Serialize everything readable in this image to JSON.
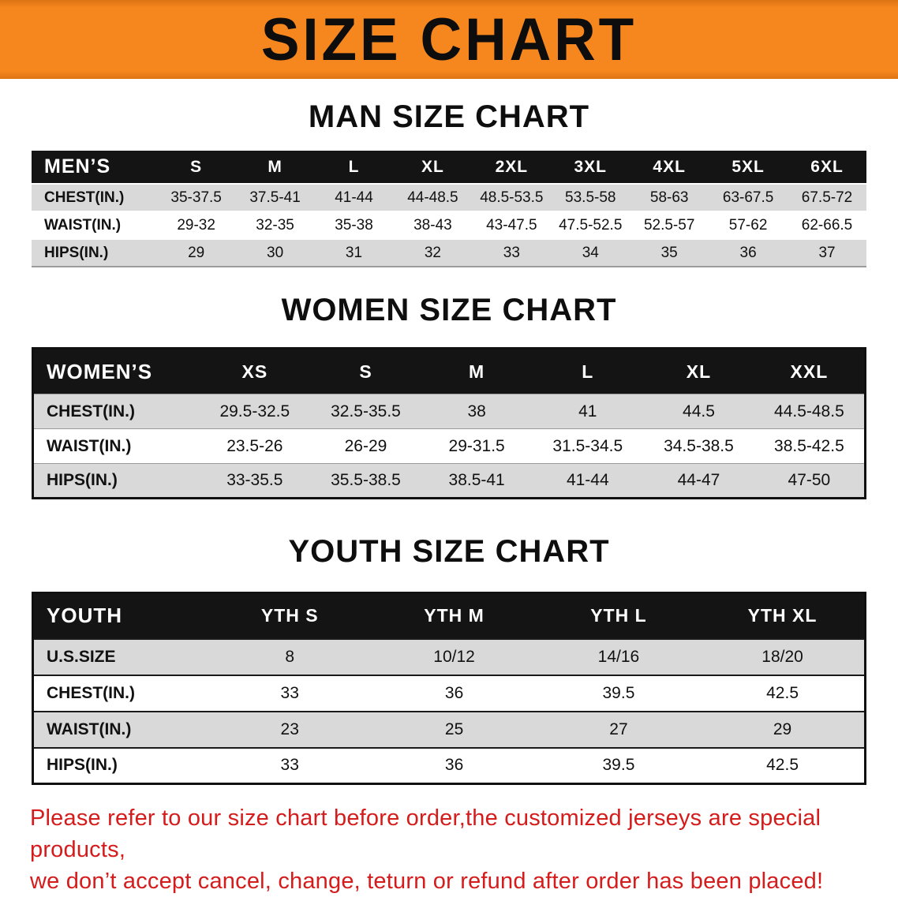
{
  "banner": {
    "title": "SIZE CHART"
  },
  "sections": [
    {
      "heading": "MAN SIZE CHART",
      "table": {
        "header": [
          "MEN’S",
          "S",
          "M",
          "L",
          "XL",
          "2XL",
          "3XL",
          "4XL",
          "5XL",
          "6XL"
        ],
        "rows": [
          [
            "CHEST(IN.)",
            "35-37.5",
            "37.5-41",
            "41-44",
            "44-48.5",
            "48.5-53.5",
            "53.5-58",
            "58-63",
            "63-67.5",
            "67.5-72"
          ],
          [
            "WAIST(IN.)",
            "29-32",
            "32-35",
            "35-38",
            "38-43",
            "43-47.5",
            "47.5-52.5",
            "52.5-57",
            "57-62",
            "62-66.5"
          ],
          [
            "HIPS(IN.)",
            "29",
            "30",
            "31",
            "32",
            "33",
            "34",
            "35",
            "36",
            "37"
          ]
        ]
      }
    },
    {
      "heading": "WOMEN SIZE CHART",
      "table": {
        "header": [
          "WOMEN’S",
          "XS",
          "S",
          "M",
          "L",
          "XL",
          "XXL"
        ],
        "rows": [
          [
            "CHEST(IN.)",
            "29.5-32.5",
            "32.5-35.5",
            "38",
            "41",
            "44.5",
            "44.5-48.5"
          ],
          [
            "WAIST(IN.)",
            "23.5-26",
            "26-29",
            "29-31.5",
            "31.5-34.5",
            "34.5-38.5",
            "38.5-42.5"
          ],
          [
            "HIPS(IN.)",
            "33-35.5",
            "35.5-38.5",
            "38.5-41",
            "41-44",
            "44-47",
            "47-50"
          ]
        ]
      }
    },
    {
      "heading": "YOUTH SIZE CHART",
      "table": {
        "header": [
          "YOUTH",
          "YTH S",
          "YTH M",
          "YTH L",
          "YTH XL"
        ],
        "rows": [
          [
            "U.S.SIZE",
            "8",
            "10/12",
            "14/16",
            "18/20"
          ],
          [
            "CHEST(IN.)",
            "33",
            "36",
            "39.5",
            "42.5"
          ],
          [
            "WAIST(IN.)",
            "23",
            "25",
            "27",
            "29"
          ],
          [
            "HIPS(IN.)",
            "33",
            "36",
            "39.5",
            "42.5"
          ]
        ]
      }
    }
  ],
  "footer": {
    "line1": "Please refer to our size chart before order,the customized jerseys are special products,",
    "line2": "we don’t accept cancel, change, teturn or refund after order has been placed!"
  },
  "colors": {
    "banner_orange": "#f6871f",
    "header_black": "#141414",
    "stripe_gray": "#d9d9d9",
    "note_red": "#d41c1c"
  }
}
